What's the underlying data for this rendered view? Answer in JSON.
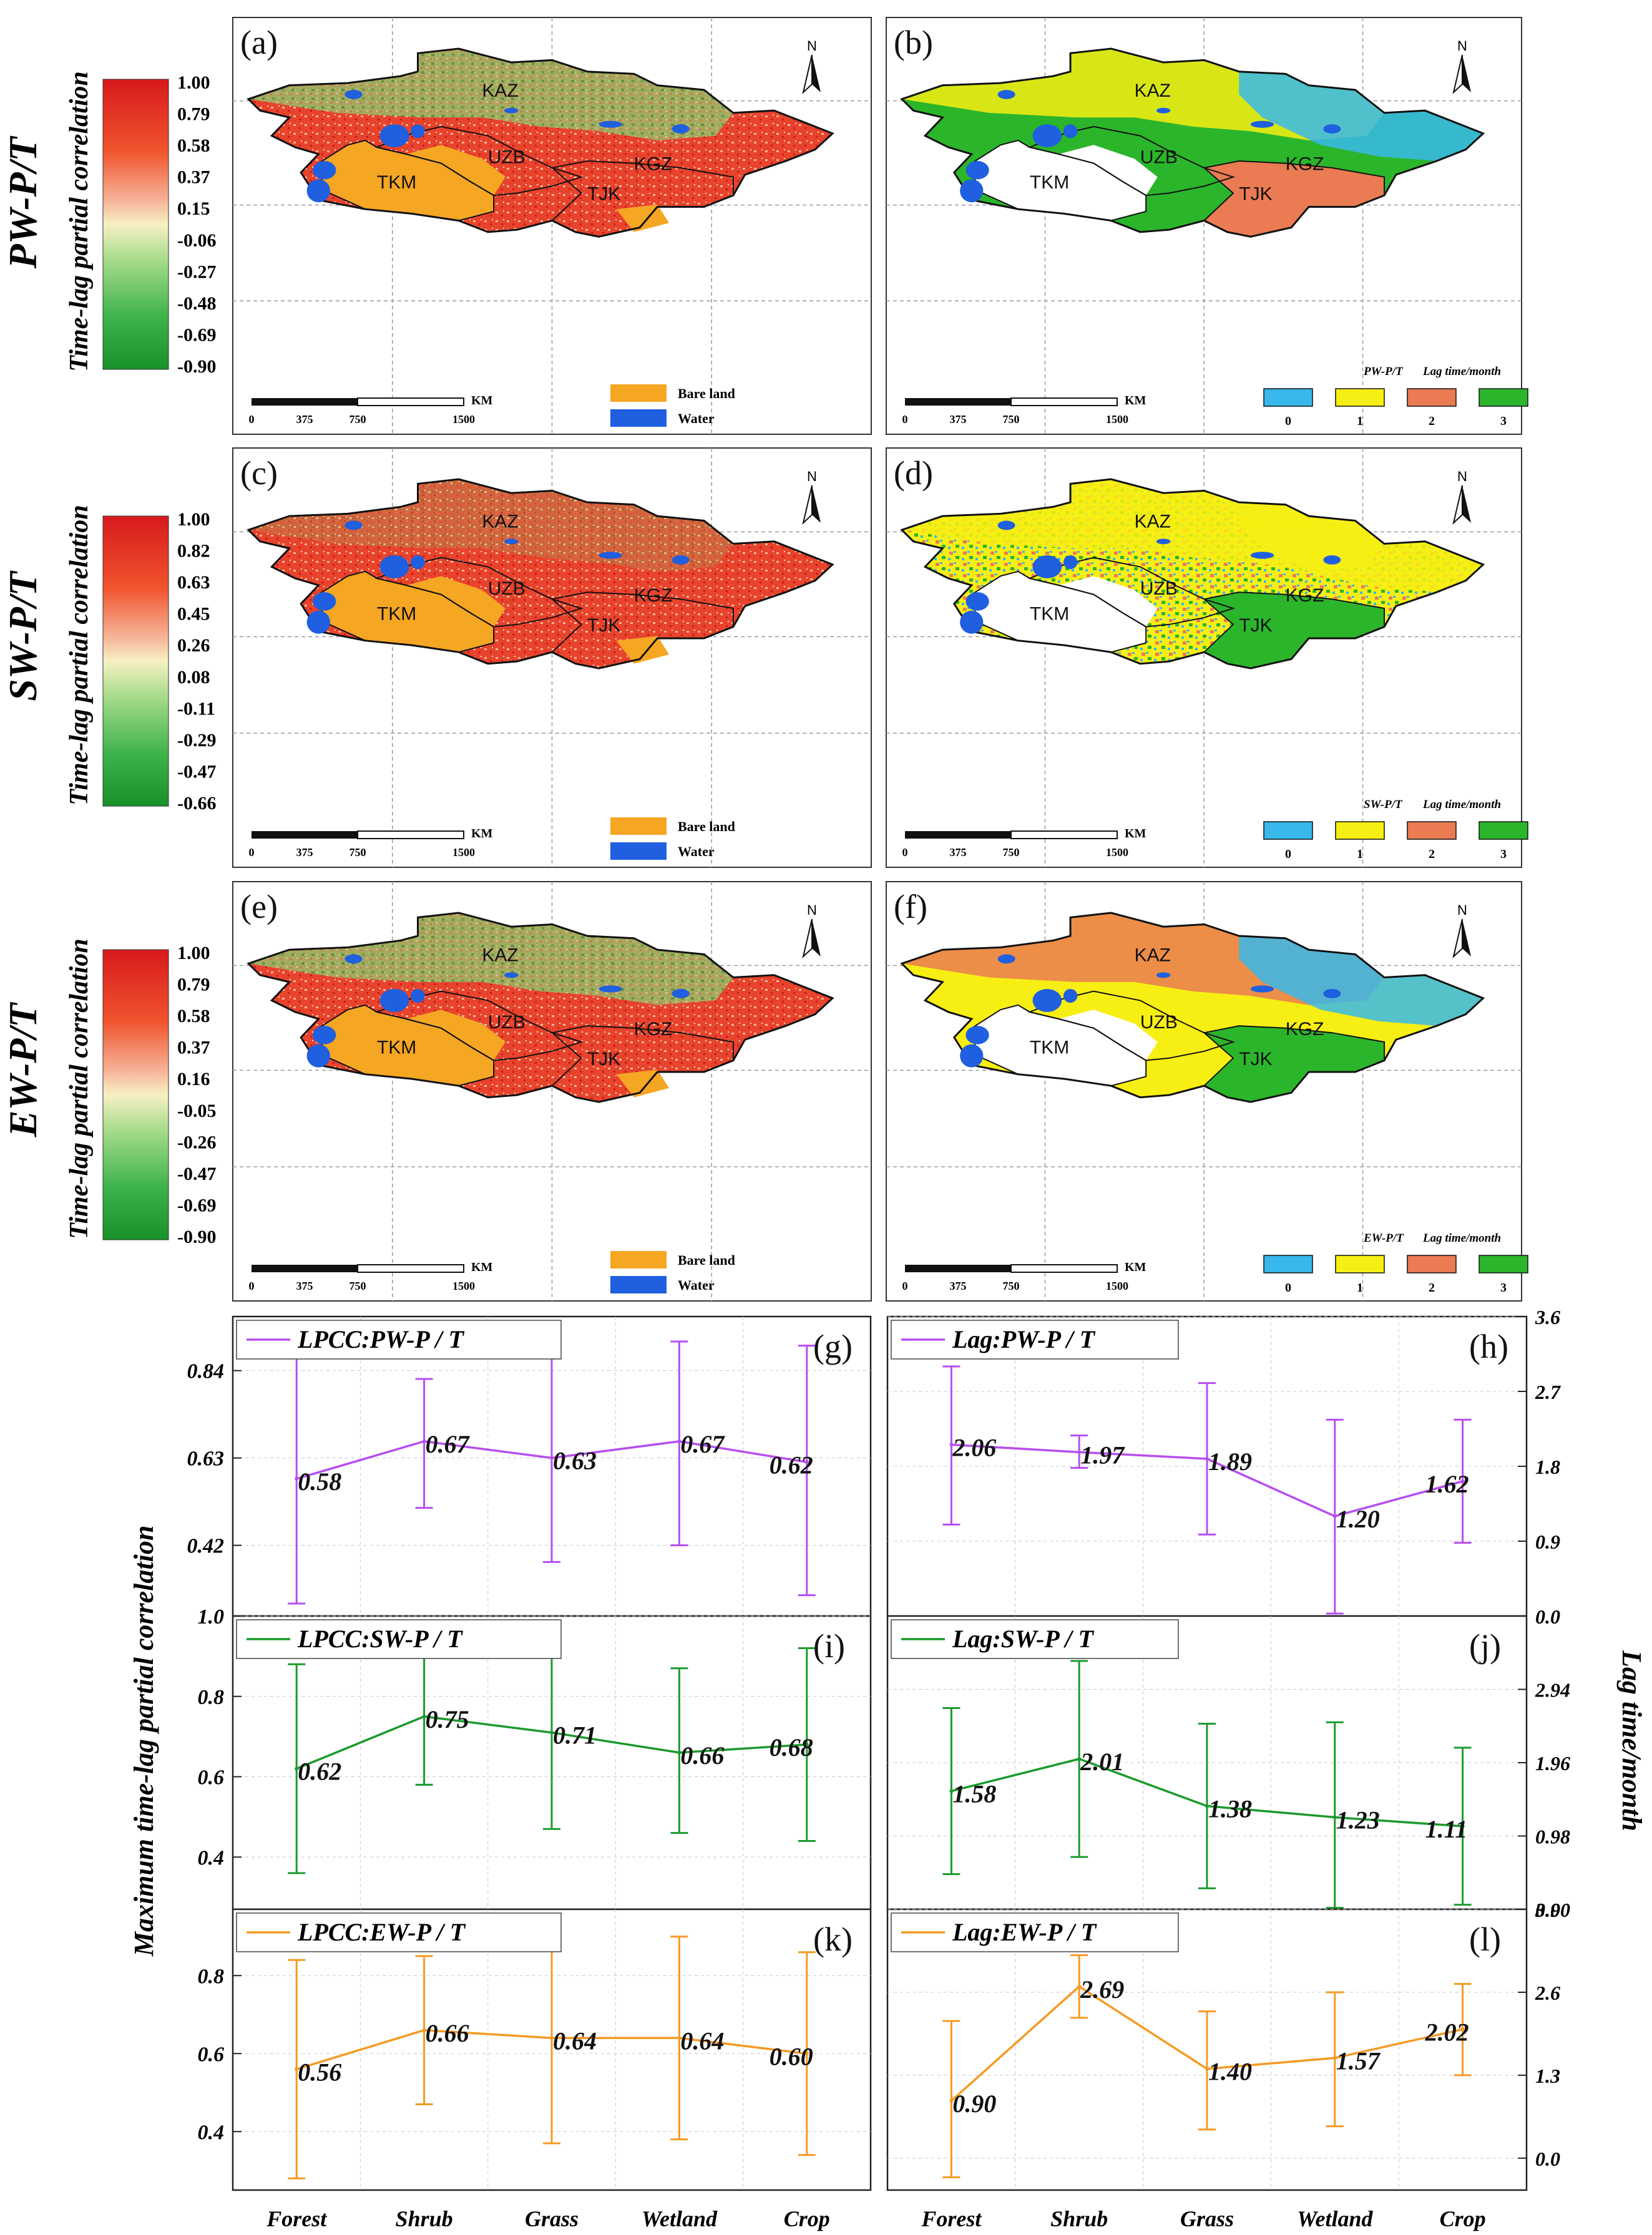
{
  "row_labels": [
    "PW-P/T",
    "SW-P/T",
    "EW-P/T"
  ],
  "colorbar_label": "Time-lag partial correlation",
  "colorbar_ticks": [
    [
      "1.00",
      "0.79",
      "0.58",
      "0.37",
      "0.15",
      "-0.06",
      "-0.27",
      "-0.48",
      "-0.69",
      "-0.90"
    ],
    [
      "1.00",
      "0.82",
      "0.63",
      "0.45",
      "0.26",
      "0.08",
      "-0.11",
      "-0.29",
      "-0.47",
      "-0.66"
    ],
    [
      "1.00",
      "0.79",
      "0.58",
      "0.37",
      "0.16",
      "-0.05",
      "-0.26",
      "-0.47",
      "-0.69",
      "-0.90"
    ]
  ],
  "maps": [
    {
      "id": "a",
      "label": "(a)",
      "type": "correlation"
    },
    {
      "id": "b",
      "label": "(b)",
      "type": "lag",
      "legend_var": "PW-P/T"
    },
    {
      "id": "c",
      "label": "(c)",
      "type": "correlation"
    },
    {
      "id": "d",
      "label": "(d)",
      "type": "lag",
      "legend_var": "SW-P/T"
    },
    {
      "id": "e",
      "label": "(e)",
      "type": "correlation"
    },
    {
      "id": "f",
      "label": "(f)",
      "type": "lag",
      "legend_var": "EW-P/T"
    }
  ],
  "map_text": {
    "north": "N",
    "countries": [
      "KAZ",
      "UZB",
      "TKM",
      "KGZ",
      "TJK"
    ],
    "scale_unit": "KM",
    "scale_ticks": [
      "0",
      "375",
      "750",
      "1500"
    ],
    "bare_land": "Bare land",
    "water": "Water",
    "lag_title": "Lag time/month",
    "lag_classes": [
      "0",
      "1",
      "2",
      "3"
    ]
  },
  "colors": {
    "bare_land": "#f5a623",
    "water": "#1f5fe0",
    "lag_0": "#38b8ea",
    "lag_1": "#f7ef13",
    "lag_2": "#ea7b52",
    "lag_3": "#2bb52b",
    "series_pw": "#b74ef0",
    "series_sw": "#1b9a2c",
    "series_ew": "#f59a23"
  },
  "left_axis_label": "Maximum time-lag partial correlation",
  "right_axis_label": "Lag time/month",
  "chart_data": [
    {
      "id": "g",
      "label": "(g)",
      "type": "line",
      "series": "LPCC:PW-P / T",
      "color_key": "series_pw",
      "categories": [
        "Forest",
        "Shrub",
        "Grass",
        "Wetland",
        "Crop"
      ],
      "values": [
        0.58,
        0.67,
        0.63,
        0.67,
        0.62
      ],
      "value_labels": [
        "0.58",
        "0.67",
        "0.63",
        "0.67",
        "0.62"
      ],
      "err_low": [
        0.28,
        0.51,
        0.38,
        0.42,
        0.3
      ],
      "err_high": [
        0.87,
        0.82,
        0.88,
        0.91,
        0.9
      ],
      "ylim": [
        0.25,
        0.97
      ],
      "yticks": [
        0.42,
        0.63,
        0.84
      ],
      "ytick_labels": [
        "0.42",
        "0.63",
        "0.84"
      ],
      "axis": "left"
    },
    {
      "id": "h",
      "label": "(h)",
      "type": "line",
      "series": "Lag:PW-P / T",
      "color_key": "series_pw",
      "categories": [
        "Forest",
        "Shrub",
        "Grass",
        "Wetland",
        "Crop"
      ],
      "values": [
        2.06,
        1.97,
        1.89,
        1.2,
        1.62
      ],
      "value_labels": [
        "2.06",
        "1.97",
        "1.89",
        "1.20",
        "1.62"
      ],
      "err_low": [
        1.1,
        1.78,
        0.98,
        0.03,
        0.88
      ],
      "err_high": [
        3.0,
        2.17,
        2.8,
        2.36,
        2.36
      ],
      "ylim": [
        0,
        3.6
      ],
      "yticks": [
        0,
        0.9,
        1.8,
        2.7,
        3.6
      ],
      "ytick_labels": [
        "0.0",
        "0.9",
        "1.8",
        "2.7",
        "3.6"
      ],
      "axis": "right"
    },
    {
      "id": "i",
      "label": "(i)",
      "type": "line",
      "series": "LPCC:SW-P / T",
      "color_key": "series_sw",
      "categories": [
        "Forest",
        "Shrub",
        "Grass",
        "Wetland",
        "Crop"
      ],
      "values": [
        0.62,
        0.75,
        0.71,
        0.66,
        0.68
      ],
      "value_labels": [
        "0.62",
        "0.75",
        "0.71",
        "0.66",
        "0.68"
      ],
      "err_low": [
        0.36,
        0.58,
        0.47,
        0.46,
        0.44
      ],
      "err_high": [
        0.88,
        0.92,
        0.95,
        0.87,
        0.92
      ],
      "ylim": [
        0.27,
        1.0
      ],
      "yticks": [
        0.4,
        0.6,
        0.8,
        1.0
      ],
      "ytick_labels": [
        "0.4",
        "0.6",
        "0.8",
        "1.0"
      ],
      "axis": "left"
    },
    {
      "id": "j",
      "label": "(j)",
      "type": "line",
      "series": "Lag:SW-P / T",
      "color_key": "series_sw",
      "categories": [
        "Forest",
        "Shrub",
        "Grass",
        "Wetland",
        "Crop"
      ],
      "values": [
        1.58,
        2.01,
        1.38,
        1.23,
        1.11
      ],
      "value_labels": [
        "1.58",
        "2.01",
        "1.38",
        "1.23",
        "1.11"
      ],
      "err_low": [
        0.47,
        0.7,
        0.28,
        0.02,
        0.06
      ],
      "err_high": [
        2.69,
        3.32,
        2.48,
        2.5,
        2.16
      ],
      "ylim": [
        0,
        3.92
      ],
      "yticks": [
        0,
        0.98,
        1.96,
        2.94
      ],
      "ytick_labels": [
        "0.00",
        "0.98",
        "1.96",
        "2.94"
      ],
      "axis": "right"
    },
    {
      "id": "k",
      "label": "(k)",
      "type": "line",
      "series": "LPCC:EW-P / T",
      "color_key": "series_ew",
      "categories": [
        "Forest",
        "Shrub",
        "Grass",
        "Wetland",
        "Crop"
      ],
      "values": [
        0.56,
        0.66,
        0.64,
        0.64,
        0.6
      ],
      "value_labels": [
        "0.56",
        "0.66",
        "0.64",
        "0.64",
        "0.60"
      ],
      "err_low": [
        0.28,
        0.47,
        0.37,
        0.38,
        0.34
      ],
      "err_high": [
        0.84,
        0.85,
        0.91,
        0.9,
        0.86
      ],
      "ylim": [
        0.25,
        0.97
      ],
      "yticks": [
        0.4,
        0.6,
        0.8
      ],
      "ytick_labels": [
        "0.4",
        "0.6",
        "0.8"
      ],
      "axis": "left"
    },
    {
      "id": "l",
      "label": "(l)",
      "type": "line",
      "series": "Lag:EW-P / T",
      "color_key": "series_ew",
      "categories": [
        "Forest",
        "Shrub",
        "Grass",
        "Wetland",
        "Crop"
      ],
      "values": [
        0.9,
        2.69,
        1.4,
        1.57,
        2.02
      ],
      "value_labels": [
        "0.90",
        "2.69",
        "1.40",
        "1.57",
        "2.02"
      ],
      "err_low": [
        -0.3,
        2.2,
        0.45,
        0.5,
        1.3
      ],
      "err_high": [
        2.15,
        3.18,
        2.3,
        2.6,
        2.73
      ],
      "ylim": [
        -0.5,
        3.9
      ],
      "yticks": [
        0,
        1.3,
        2.6,
        3.9
      ],
      "ytick_labels": [
        "0.0",
        "1.3",
        "2.6",
        "3.9"
      ],
      "axis": "right"
    }
  ]
}
